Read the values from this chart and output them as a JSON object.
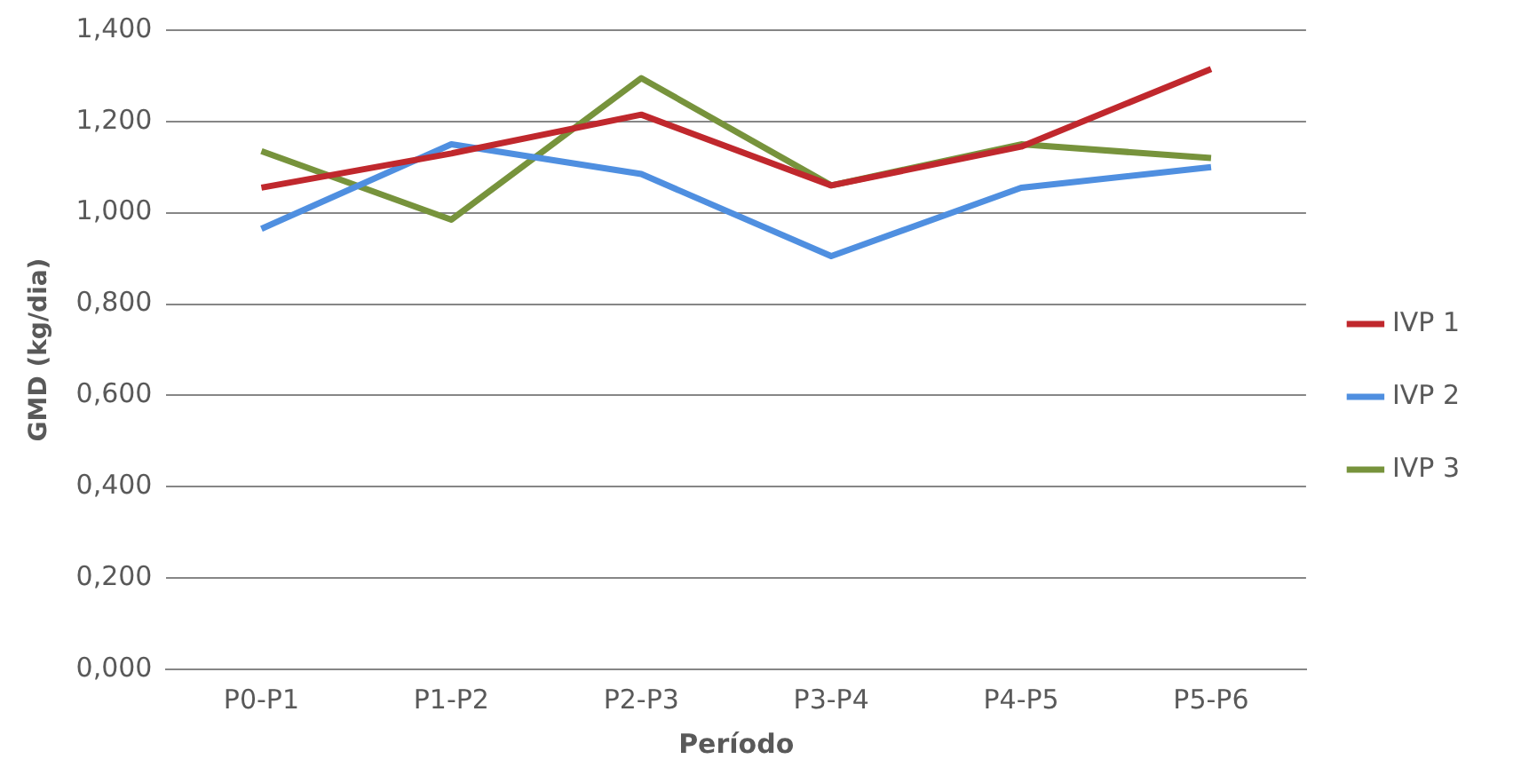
{
  "chart_data": {
    "type": "line",
    "xlabel": "Período",
    "ylabel": "GMD (kg/dia)",
    "categories": [
      "P0-P1",
      "P1-P2",
      "P2-P3",
      "P3-P4",
      "P4-P5",
      "P5-P6"
    ],
    "series": [
      {
        "name": "IVP 1",
        "color": "#c0282d",
        "values": [
          1.055,
          1.13,
          1.215,
          1.06,
          1.145,
          1.315
        ]
      },
      {
        "name": "IVP 2",
        "color": "#4f8fe0",
        "values": [
          0.965,
          1.15,
          1.085,
          0.905,
          1.055,
          1.1
        ]
      },
      {
        "name": "IVP 3",
        "color": "#77933c",
        "values": [
          1.135,
          0.985,
          1.295,
          1.06,
          1.15,
          1.12
        ]
      }
    ],
    "ylim": [
      0,
      1.4
    ],
    "yticks": [
      {
        "value": 0,
        "label": "0,000"
      },
      {
        "value": 0.2,
        "label": "0,200"
      },
      {
        "value": 0.4,
        "label": "0,400"
      },
      {
        "value": 0.6,
        "label": "0,600"
      },
      {
        "value": 0.8,
        "label": "0,800"
      },
      {
        "value": 1,
        "label": "1,000"
      },
      {
        "value": 1.2,
        "label": "1,200"
      },
      {
        "value": 1.4,
        "label": "1,400"
      }
    ],
    "grid": "y",
    "legend": "right",
    "marker": "none",
    "line_style": "solid"
  }
}
